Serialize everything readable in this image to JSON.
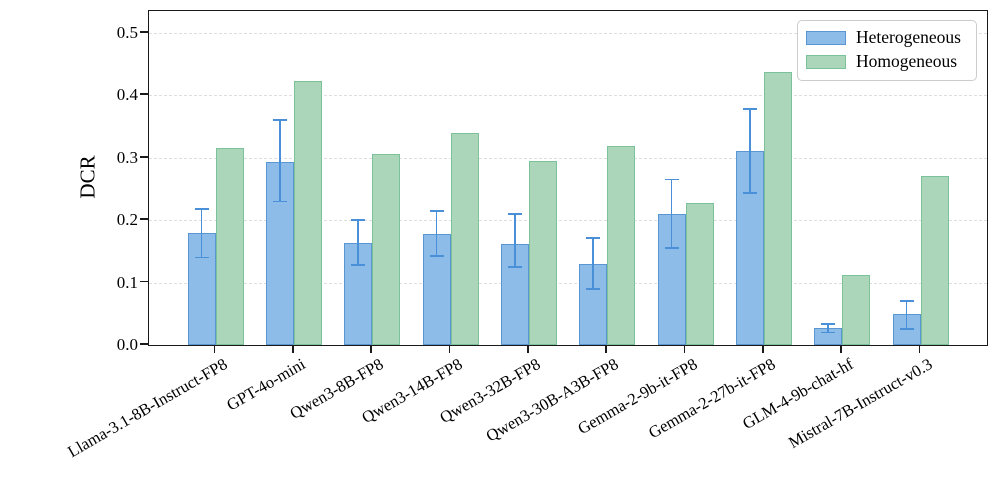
{
  "figure": {
    "y_axis_title": "DCR",
    "ytick_labels": [
      "0.0",
      "0.1",
      "0.2",
      "0.3",
      "0.4",
      "0.5"
    ]
  },
  "legend": {
    "items": [
      {
        "label": "Heterogeneous",
        "series_index": 0
      },
      {
        "label": "Homogeneous",
        "series_index": 1
      }
    ]
  },
  "chart_data": {
    "type": "bar",
    "title": "",
    "xlabel": "",
    "ylabel": "DCR",
    "ylim": [
      0,
      0.535
    ],
    "yticks": [
      0.0,
      0.1,
      0.2,
      0.3,
      0.4,
      0.5
    ],
    "grid": "horizontal-dashed",
    "legend_position": "upper-right",
    "categories": [
      "Llama-3.1-8B-Instruct-FP8",
      "GPT-4o-mini",
      "Qwen3-8B-FP8",
      "Qwen3-14B-FP8",
      "Qwen3-32B-FP8",
      "Qwen3-30B-A3B-FP8",
      "Gemma-2-9b-it-FP8",
      "Gemma-2-27b-it-FP8",
      "GLM-4-9b-chat-hf",
      "Mistral-7B-Instruct-v0.3"
    ],
    "series": [
      {
        "name": "Heterogeneous",
        "fill_color": "#8ebce8",
        "edge_color": "#5a96d2",
        "errorbar_color": "#4a90d8",
        "values": [
          0.179,
          0.293,
          0.163,
          0.178,
          0.162,
          0.13,
          0.21,
          0.31,
          0.027,
          0.049
        ],
        "errorbar_min": [
          0.14,
          0.23,
          0.128,
          0.142,
          0.125,
          0.09,
          0.155,
          0.244,
          0.02,
          0.026
        ],
        "errorbar_max": [
          0.218,
          0.36,
          0.2,
          0.215,
          0.21,
          0.172,
          0.265,
          0.378,
          0.033,
          0.071
        ]
      },
      {
        "name": "Homogeneous",
        "fill_color": "#abd6ba",
        "edge_color": "#7bc29a",
        "values": [
          0.315,
          0.423,
          0.306,
          0.34,
          0.295,
          0.318,
          0.227,
          0.438,
          0.112,
          0.27
        ]
      }
    ]
  }
}
